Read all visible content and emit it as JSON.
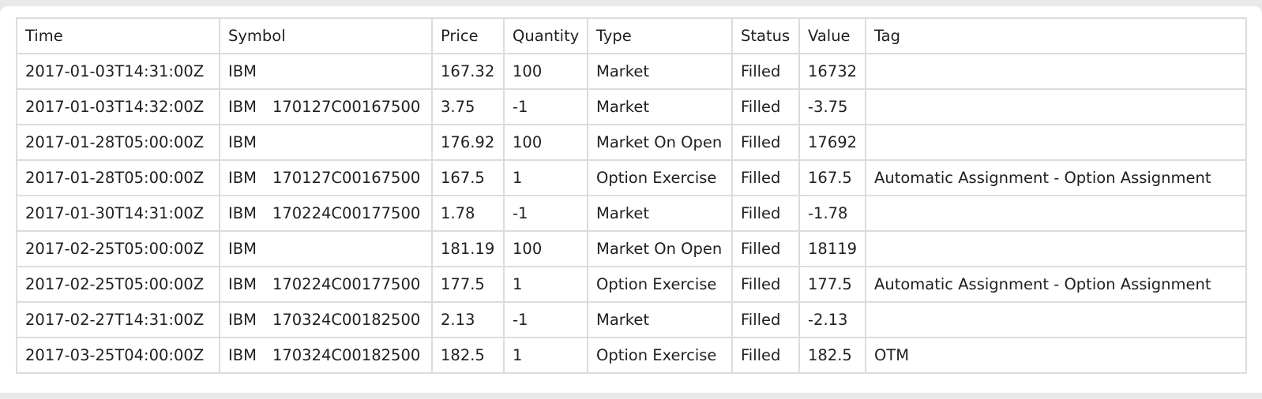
{
  "orders_table": {
    "columns": [
      "Time",
      "Symbol",
      "Price",
      "Quantity",
      "Type",
      "Status",
      "Value",
      "Tag"
    ],
    "rows": [
      {
        "time": "2017-01-03T14:31:00Z",
        "symbol_base": "IBM",
        "symbol_option": "",
        "price": "167.32",
        "quantity": "100",
        "type": "Market",
        "status": "Filled",
        "value": "16732",
        "tag": ""
      },
      {
        "time": "2017-01-03T14:32:00Z",
        "symbol_base": "IBM",
        "symbol_option": "170127C00167500",
        "price": "3.75",
        "quantity": "-1",
        "type": "Market",
        "status": "Filled",
        "value": "-3.75",
        "tag": ""
      },
      {
        "time": "2017-01-28T05:00:00Z",
        "symbol_base": "IBM",
        "symbol_option": "",
        "price": "176.92",
        "quantity": "100",
        "type": "Market On Open",
        "status": "Filled",
        "value": "17692",
        "tag": ""
      },
      {
        "time": "2017-01-28T05:00:00Z",
        "symbol_base": "IBM",
        "symbol_option": "170127C00167500",
        "price": "167.5",
        "quantity": "1",
        "type": "Option Exercise",
        "status": "Filled",
        "value": "167.5",
        "tag": "Automatic Assignment - Option Assignment"
      },
      {
        "time": "2017-01-30T14:31:00Z",
        "symbol_base": "IBM",
        "symbol_option": "170224C00177500",
        "price": "1.78",
        "quantity": "-1",
        "type": "Market",
        "status": "Filled",
        "value": "-1.78",
        "tag": ""
      },
      {
        "time": "2017-02-25T05:00:00Z",
        "symbol_base": "IBM",
        "symbol_option": "",
        "price": "181.19",
        "quantity": "100",
        "type": "Market On Open",
        "status": "Filled",
        "value": "18119",
        "tag": ""
      },
      {
        "time": "2017-02-25T05:00:00Z",
        "symbol_base": "IBM",
        "symbol_option": "170224C00177500",
        "price": "177.5",
        "quantity": "1",
        "type": "Option Exercise",
        "status": "Filled",
        "value": "177.5",
        "tag": "Automatic Assignment - Option Assignment"
      },
      {
        "time": "2017-02-27T14:31:00Z",
        "symbol_base": "IBM",
        "symbol_option": "170324C00182500",
        "price": "2.13",
        "quantity": "-1",
        "type": "Market",
        "status": "Filled",
        "value": "-2.13",
        "tag": ""
      },
      {
        "time": "2017-03-25T04:00:00Z",
        "symbol_base": "IBM",
        "symbol_option": "170324C00182500",
        "price": "182.5",
        "quantity": "1",
        "type": "Option Exercise",
        "status": "Filled",
        "value": "182.5",
        "tag": "OTM"
      }
    ]
  }
}
